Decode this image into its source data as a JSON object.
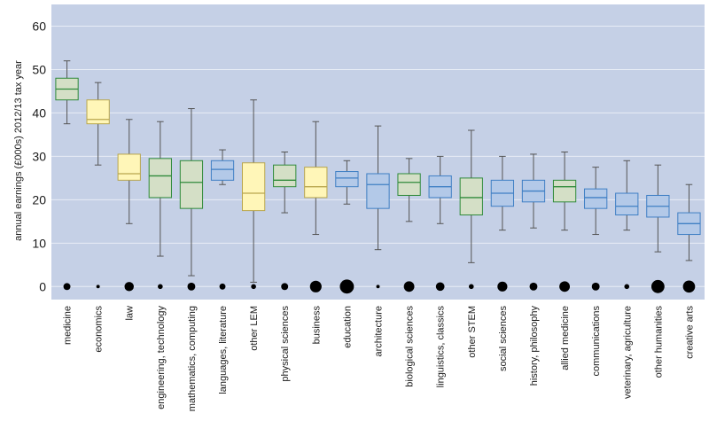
{
  "chart_data": {
    "type": "boxplot",
    "title": "",
    "xlabel": "",
    "ylabel": "annual earnings (£000s) 2012/13 tax year",
    "ylim": [
      -3,
      65
    ],
    "yticks": [
      0,
      10,
      20,
      30,
      40,
      50,
      60
    ],
    "grid": true,
    "colors": {
      "plot_bg": "#c5d0e6",
      "grid": "#e8edf6",
      "green_fill": "#d4dfc6",
      "green_stroke": "#2f8a3a",
      "yellow_fill": "#fff6b8",
      "yellow_stroke": "#b9a64e",
      "blue_fill": "#b3c9e8",
      "blue_stroke": "#3f7fc4",
      "whisker": "#555555",
      "dot": "#000000"
    },
    "categories": [
      {
        "label": "medicine",
        "group": "green",
        "min": 37.5,
        "q1": 43,
        "median": 45.5,
        "q3": 48,
        "max": 52,
        "share": 2
      },
      {
        "label": "economics",
        "group": "yellow",
        "min": 28,
        "q1": 37.5,
        "median": 38.5,
        "q3": 43,
        "max": 47,
        "share": 0.5
      },
      {
        "label": "law",
        "group": "yellow",
        "min": 14.5,
        "q1": 24.5,
        "median": 26,
        "q3": 30.5,
        "max": 38.5,
        "share": 3.5
      },
      {
        "label": "engineering, technology",
        "group": "green",
        "min": 7,
        "q1": 20.5,
        "median": 25.5,
        "q3": 29.5,
        "max": 38,
        "share": 1
      },
      {
        "label": "mathematics, computing",
        "group": "green",
        "min": 2.5,
        "q1": 18,
        "median": 24,
        "q3": 29,
        "max": 41,
        "share": 2.5
      },
      {
        "label": "languages, literature",
        "group": "blue",
        "min": 23.5,
        "q1": 24.5,
        "median": 27,
        "q3": 29,
        "max": 31.5,
        "share": 1.5
      },
      {
        "label": "other LEM",
        "group": "yellow",
        "min": 1,
        "q1": 17.5,
        "median": 21.5,
        "q3": 28.5,
        "max": 43,
        "share": 1
      },
      {
        "label": "physical sciences",
        "group": "green",
        "min": 17,
        "q1": 23,
        "median": 24.5,
        "q3": 28,
        "max": 31,
        "share": 2
      },
      {
        "label": "business",
        "group": "yellow",
        "min": 12,
        "q1": 20.5,
        "median": 23,
        "q3": 27.5,
        "max": 38,
        "share": 5.5
      },
      {
        "label": "education",
        "group": "blue",
        "min": 19,
        "q1": 23,
        "median": 25,
        "q3": 26.5,
        "max": 29,
        "share": 8
      },
      {
        "label": "architecture",
        "group": "blue",
        "min": 8.5,
        "q1": 18,
        "median": 23.5,
        "q3": 26,
        "max": 37,
        "share": 0.5
      },
      {
        "label": "biological sciences",
        "group": "green",
        "min": 15,
        "q1": 21,
        "median": 24,
        "q3": 26,
        "max": 29.5,
        "share": 4.5
      },
      {
        "label": "linguistics, classics",
        "group": "blue",
        "min": 14.5,
        "q1": 20.5,
        "median": 23,
        "q3": 25.5,
        "max": 30,
        "share": 3
      },
      {
        "label": "other STEM",
        "group": "green",
        "min": 5.5,
        "q1": 16.5,
        "median": 20.5,
        "q3": 25,
        "max": 36,
        "share": 1
      },
      {
        "label": "social sciences",
        "group": "blue",
        "min": 13,
        "q1": 18.5,
        "median": 21.5,
        "q3": 24.5,
        "max": 30,
        "share": 4
      },
      {
        "label": "history, philosophy",
        "group": "blue",
        "min": 13.5,
        "q1": 19.5,
        "median": 22,
        "q3": 24.5,
        "max": 30.5,
        "share": 2.5
      },
      {
        "label": "allied medicine",
        "group": "green",
        "min": 13,
        "q1": 19.5,
        "median": 23,
        "q3": 24.5,
        "max": 31,
        "share": 4.5
      },
      {
        "label": "communications",
        "group": "blue",
        "min": 12,
        "q1": 18,
        "median": 20.5,
        "q3": 22.5,
        "max": 27.5,
        "share": 2.5
      },
      {
        "label": "veterinary, agriculture",
        "group": "blue",
        "min": 13,
        "q1": 16.5,
        "median": 18.5,
        "q3": 21.5,
        "max": 29,
        "share": 1
      },
      {
        "label": "other humanities",
        "group": "blue",
        "min": 8,
        "q1": 16,
        "median": 18.5,
        "q3": 21,
        "max": 28,
        "share": 7
      },
      {
        "label": "creative arts",
        "group": "blue",
        "min": 6,
        "q1": 12,
        "median": 14.5,
        "q3": 17,
        "max": 23.5,
        "share": 6
      }
    ]
  }
}
